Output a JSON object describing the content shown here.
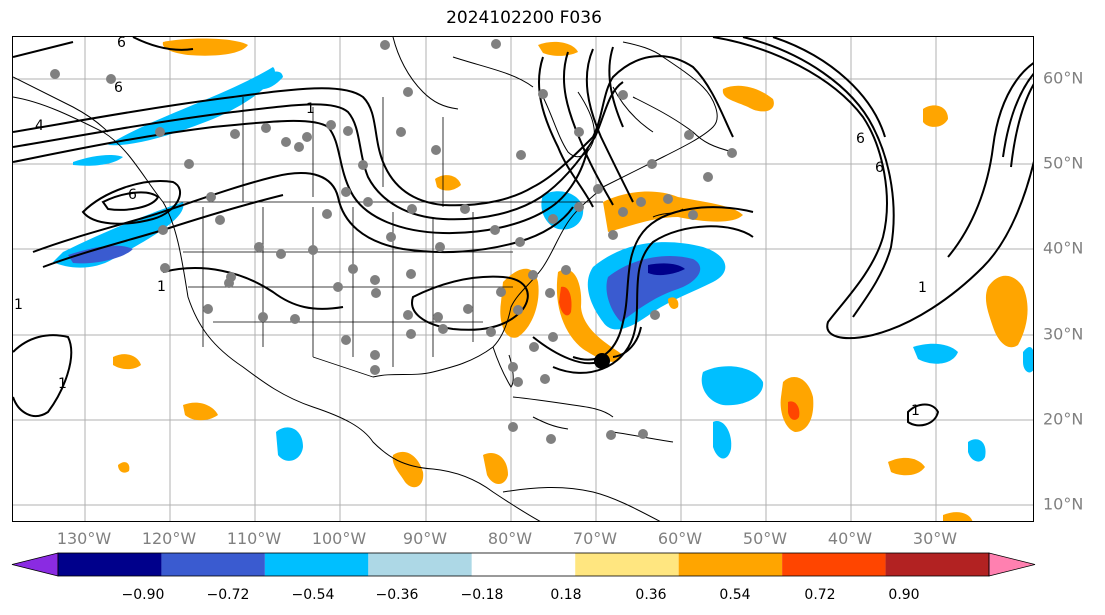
{
  "title": "2024102200 F036",
  "lat_labels": [
    "60°N",
    "50°N",
    "40°N",
    "30°N",
    "20°N",
    "10°N"
  ],
  "lon_labels": [
    "130°W",
    "120°W",
    "110°W",
    "100°W",
    "90°W",
    "80°W",
    "70°W",
    "60°W",
    "50°W",
    "40°W",
    "30°W"
  ],
  "colorbar": {
    "colors": [
      "#8a2be2",
      "#00008b",
      "#3a5bd0",
      "#00bfff",
      "#add8e6",
      "#ffffff",
      "#ffe680",
      "#ffa500",
      "#ff4500",
      "#b22222",
      "#ff80b0"
    ],
    "labels": [
      "−0.90",
      "−0.72",
      "−0.54",
      "−0.36",
      "−0.18",
      "0.18",
      "0.36",
      "0.54",
      "0.72",
      "0.90"
    ]
  },
  "contour_labels": [
    "6",
    "6",
    "4",
    "1",
    "6",
    "6",
    "6",
    "1",
    "1",
    "1",
    "1",
    "1"
  ]
}
